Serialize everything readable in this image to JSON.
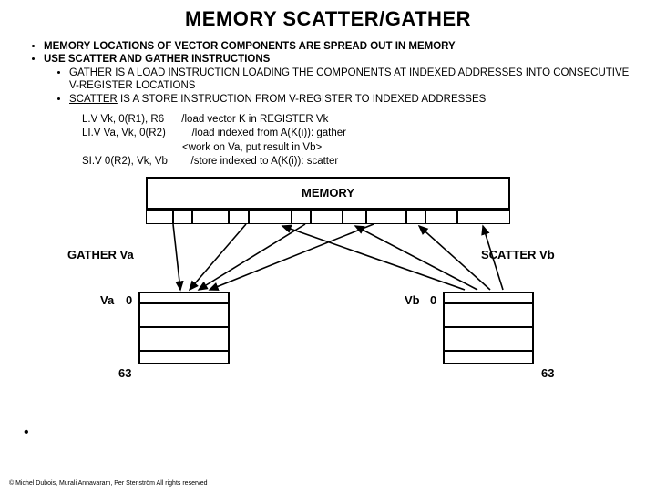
{
  "title": "MEMORY SCATTER/GATHER",
  "bullets": {
    "b1": "MEMORY LOCATIONS OF VECTOR COMPONENTS ARE SPREAD OUT IN MEMORY",
    "b2": "USE SCATTER AND GATHER INSTRUCTIONS",
    "b2a_lead": "GATHER",
    "b2a_rest": " IS A LOAD INSTRUCTION LOADING THE COMPONENTS AT INDEXED ADDRESSES INTO CONSECUTIVE V-REGISTER LOCATIONS",
    "b2b_lead": "SCATTER",
    "b2b_rest": " IS A STORE INSTRUCTION FROM V-REGISTER TO INDEXED ADDRESSES"
  },
  "code": {
    "l1a": "L.V Vk, 0(R1), R6",
    "l1b": "/load vector K in REGISTER Vk",
    "l2a": "LI.V Va, Vk, 0(R2)",
    "l2b": "/load indexed from A(K(i)): gather",
    "l3": "<work on Va, put result in Vb>",
    "l4a": "SI.V 0(R2), Vk, Vb",
    "l4b": "/store indexed to A(K(i)): scatter"
  },
  "diagram": {
    "memory": "MEMORY",
    "gather": "GATHER Va",
    "scatter": "SCATTER Vb",
    "va": "Va",
    "vb": "Vb",
    "zero": "0",
    "last": "63",
    "memcell_widths": [
      30,
      20,
      40,
      22,
      48,
      20,
      35,
      25,
      45,
      20,
      35,
      60
    ]
  },
  "footer": "© Michel Dubois, Murali Annavaram, Per Stenström All rights reserved"
}
